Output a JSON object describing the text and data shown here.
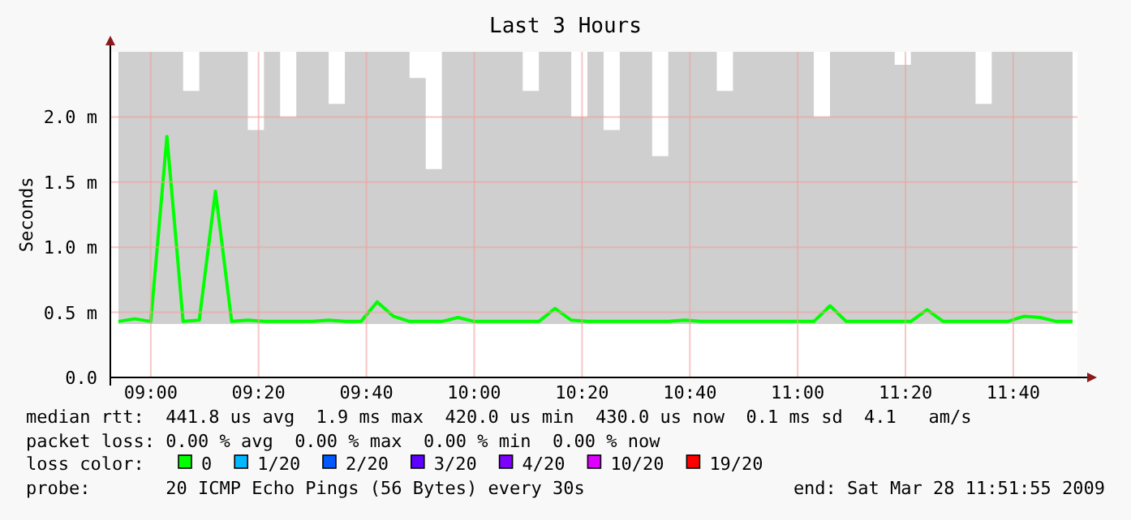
{
  "chart_data": {
    "type": "line",
    "title": "Last 3 Hours",
    "ylabel": "Seconds",
    "x": [
      8.9,
      8.95,
      9.0,
      9.05,
      9.1,
      9.15,
      9.2,
      9.25,
      9.3,
      9.35,
      9.4,
      9.45,
      9.5,
      9.55,
      9.6,
      9.65,
      9.7,
      9.75,
      9.8,
      9.85,
      9.9,
      9.95,
      10.0,
      10.05,
      10.1,
      10.15,
      10.2,
      10.25,
      10.3,
      10.35,
      10.4,
      10.45,
      10.5,
      10.55,
      10.6,
      10.65,
      10.7,
      10.75,
      10.8,
      10.85,
      10.9,
      10.95,
      11.0,
      11.05,
      11.1,
      11.15,
      11.2,
      11.25,
      11.3,
      11.35,
      11.4,
      11.45,
      11.5,
      11.55,
      11.6,
      11.65,
      11.7,
      11.75,
      11.8,
      11.85
    ],
    "series": [
      {
        "name": "0",
        "color": "#00ff00",
        "values": [
          0.43,
          0.45,
          0.43,
          1.85,
          0.43,
          0.44,
          1.43,
          0.43,
          0.44,
          0.43,
          0.43,
          0.43,
          0.43,
          0.44,
          0.43,
          0.43,
          0.58,
          0.47,
          0.43,
          0.43,
          0.43,
          0.46,
          0.43,
          0.43,
          0.43,
          0.43,
          0.43,
          0.53,
          0.44,
          0.43,
          0.43,
          0.43,
          0.43,
          0.43,
          0.43,
          0.44,
          0.43,
          0.43,
          0.43,
          0.43,
          0.43,
          0.43,
          0.43,
          0.43,
          0.55,
          0.43,
          0.43,
          0.43,
          0.43,
          0.43,
          0.52,
          0.43,
          0.43,
          0.43,
          0.43,
          0.43,
          0.47,
          0.46,
          0.43,
          0.43
        ],
        "lower": [
          0.41,
          0.41,
          0.41,
          0.41,
          0.41,
          0.41,
          0.41,
          0.41,
          0.41,
          0.41,
          0.41,
          0.41,
          0.41,
          0.41,
          0.41,
          0.41,
          0.41,
          0.41,
          0.41,
          0.41,
          0.41,
          0.41,
          0.41,
          0.41,
          0.41,
          0.41,
          0.41,
          0.41,
          0.41,
          0.41,
          0.41,
          0.41,
          0.41,
          0.41,
          0.41,
          0.41,
          0.41,
          0.41,
          0.41,
          0.41,
          0.41,
          0.41,
          0.41,
          0.41,
          0.41,
          0.41,
          0.41,
          0.41,
          0.41,
          0.41,
          0.41,
          0.41,
          0.41,
          0.41,
          0.41,
          0.41,
          0.41,
          0.41,
          0.41,
          0.41
        ],
        "upper": [
          2.5,
          2.5,
          2.5,
          2.5,
          2.2,
          2.5,
          2.5,
          2.5,
          1.9,
          2.5,
          2.0,
          2.5,
          2.5,
          2.1,
          2.5,
          2.5,
          2.5,
          2.5,
          2.3,
          1.6,
          2.5,
          2.5,
          2.5,
          2.5,
          2.5,
          2.2,
          2.5,
          2.5,
          2.0,
          2.5,
          1.9,
          2.5,
          2.5,
          1.7,
          2.5,
          2.5,
          2.5,
          2.2,
          2.5,
          2.5,
          2.5,
          2.5,
          2.5,
          2.0,
          2.5,
          2.5,
          2.5,
          2.5,
          2.4,
          2.5,
          2.5,
          2.5,
          2.5,
          2.1,
          2.5,
          2.5,
          2.5,
          2.5,
          2.5,
          2.0
        ]
      },
      {
        "name": "1/20",
        "color": "#00b8ff",
        "values": [
          null,
          null,
          null,
          null,
          null,
          null,
          null,
          null,
          null,
          null,
          null,
          null,
          null,
          null,
          null,
          null,
          null,
          null,
          null,
          null,
          null,
          null,
          null,
          null,
          null,
          null,
          null,
          null,
          null,
          null,
          null,
          null,
          null,
          null,
          null,
          null,
          null,
          null,
          null,
          null,
          null,
          null,
          null,
          null,
          null,
          null,
          null,
          null,
          null,
          null,
          null,
          null,
          null,
          null,
          null,
          null,
          null,
          null,
          null,
          null
        ]
      },
      {
        "name": "2/20",
        "color": "#0059ff",
        "values": [
          null,
          null,
          null,
          null,
          null,
          null,
          null,
          null,
          null,
          null,
          null,
          null,
          null,
          null,
          null,
          null,
          null,
          null,
          null,
          null,
          null,
          null,
          null,
          null,
          null,
          null,
          null,
          null,
          null,
          null,
          null,
          null,
          null,
          null,
          null,
          null,
          null,
          null,
          null,
          null,
          null,
          null,
          null,
          null,
          null,
          null,
          null,
          null,
          null,
          null,
          null,
          null,
          null,
          null,
          null,
          null,
          null,
          null,
          null,
          null
        ]
      },
      {
        "name": "3/20",
        "color": "#5e00ff",
        "values": [
          null,
          null,
          null,
          null,
          null,
          null,
          null,
          null,
          null,
          null,
          null,
          null,
          null,
          null,
          null,
          null,
          null,
          null,
          null,
          null,
          null,
          null,
          null,
          null,
          null,
          null,
          null,
          null,
          null,
          null,
          null,
          null,
          null,
          null,
          null,
          null,
          null,
          null,
          null,
          null,
          null,
          null,
          null,
          null,
          null,
          null,
          null,
          null,
          null,
          null,
          null,
          null,
          null,
          null,
          null,
          null,
          null,
          null,
          null,
          null
        ]
      },
      {
        "name": "4/20",
        "color": "#7e00ff",
        "values": [
          null,
          null,
          null,
          null,
          null,
          null,
          null,
          null,
          null,
          null,
          null,
          null,
          null,
          null,
          null,
          null,
          null,
          null,
          null,
          null,
          null,
          null,
          null,
          null,
          null,
          null,
          null,
          null,
          null,
          null,
          null,
          null,
          null,
          null,
          null,
          null,
          null,
          null,
          null,
          null,
          null,
          null,
          null,
          null,
          null,
          null,
          null,
          null,
          null,
          null,
          null,
          null,
          null,
          null,
          null,
          null,
          null,
          null,
          null,
          null
        ]
      },
      {
        "name": "10/20",
        "color": "#dd00ff",
        "values": [
          null,
          null,
          null,
          null,
          null,
          null,
          null,
          null,
          null,
          null,
          null,
          null,
          null,
          null,
          null,
          null,
          null,
          null,
          null,
          null,
          null,
          null,
          null,
          null,
          null,
          null,
          null,
          null,
          null,
          null,
          null,
          null,
          null,
          null,
          null,
          null,
          null,
          null,
          null,
          null,
          null,
          null,
          null,
          null,
          null,
          null,
          null,
          null,
          null,
          null,
          null,
          null,
          null,
          null,
          null,
          null,
          null,
          null,
          null,
          null
        ]
      },
      {
        "name": "19/20",
        "color": "#ff0000",
        "values": [
          null,
          null,
          null,
          null,
          null,
          null,
          null,
          null,
          null,
          null,
          null,
          null,
          null,
          null,
          null,
          null,
          null,
          null,
          null,
          null,
          null,
          null,
          null,
          null,
          null,
          null,
          null,
          null,
          null,
          null,
          null,
          null,
          null,
          null,
          null,
          null,
          null,
          null,
          null,
          null,
          null,
          null,
          null,
          null,
          null,
          null,
          null,
          null,
          null,
          null,
          null,
          null,
          null,
          null,
          null,
          null,
          null,
          null,
          null,
          null
        ]
      }
    ],
    "legend_title": "loss color:",
    "legend": "bottom",
    "xlim": [
      8.875,
      11.865
    ],
    "xticks": [
      {
        "value": 9,
        "label": "09:00"
      },
      {
        "value": 9.3333,
        "label": "09:20"
      },
      {
        "value": 9.6667,
        "label": "09:40"
      },
      {
        "value": 10,
        "label": "10:00"
      },
      {
        "value": 10.3333,
        "label": "10:20"
      },
      {
        "value": 10.6667,
        "label": "10:40"
      },
      {
        "value": 11,
        "label": "11:00"
      },
      {
        "value": 11.3333,
        "label": "11:20"
      },
      {
        "value": 11.6667,
        "label": "11:40"
      }
    ],
    "ylim": [
      0,
      2.5
    ],
    "yticks": [
      {
        "value": 0,
        "label": "0.0"
      },
      {
        "value": 0.5,
        "label": "0.5 m"
      },
      {
        "value": 1.0,
        "label": "1.0 m"
      },
      {
        "value": 1.5,
        "label": "1.5 m"
      },
      {
        "value": 2.0,
        "label": "2.0 m"
      }
    ],
    "grid": true,
    "annotations": [
      "median rtt:  441.8 us avg  1.9 ms max  420.0 us min  430.0 us now  0.1 ms sd  4.1   am/s",
      "packet loss: 0.00 % avg  0.00 % max  0.00 % min  0.00 % now",
      "probe:       20 ICMP Echo Pings (56 Bytes) every 30s",
      "end: Sat Mar 28 11:51:55 2009"
    ]
  }
}
